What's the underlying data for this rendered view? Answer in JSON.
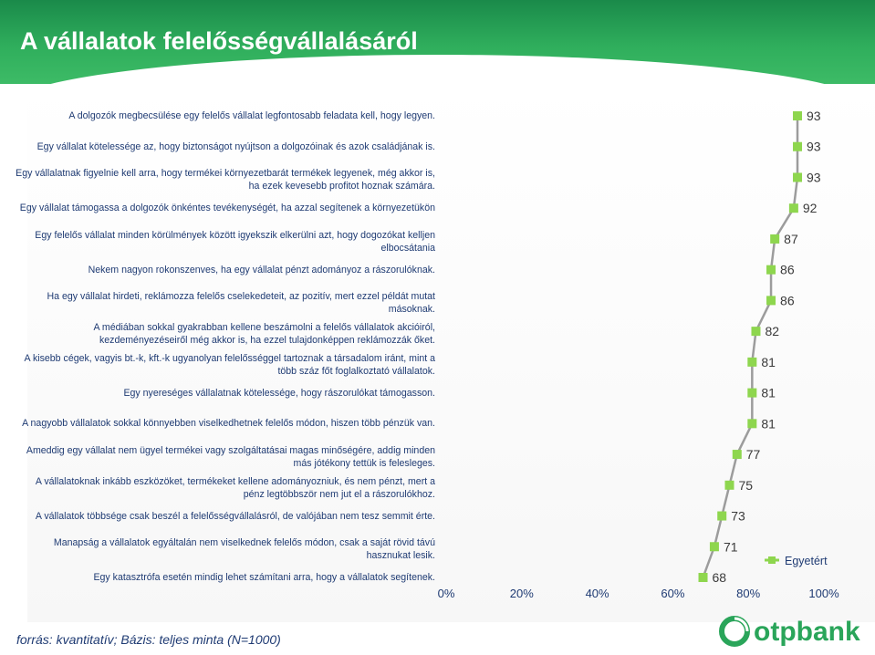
{
  "title": "A vállalatok felelősségvállalásáról",
  "source": "forrás: kvantitatív; Bázis: teljes minta (N=1000)",
  "brand": "otpbank",
  "colors": {
    "series": "#8ed64e",
    "marker": "#8ed64e",
    "line": "#9c9c9c",
    "text": "#1f3b73",
    "header": "#2aa55a"
  },
  "chart_data": {
    "type": "line",
    "xlim": [
      0,
      100
    ],
    "x_ticks": [
      "0%",
      "20%",
      "40%",
      "60%",
      "80%",
      "100%"
    ],
    "legend": {
      "position": "bottom-right",
      "label": "Egyetért"
    },
    "categories": [
      "A dolgozók megbecsülése egy felelős vállalat legfontosabb  feladata kell, hogy legyen.",
      "Egy vállalat kötelessége az, hogy biztonságot nyújtson a dolgozóinak és azok családjának is.",
      "Egy vállalatnak figyelnie kell arra, hogy termékei környezetbarát termékek legyenek, még akkor is, ha ezek kevesebb profitot hoznak számára.",
      "Egy vállalat támogassa a dolgozók önkéntes tevékenységét, ha azzal segítenek a környezetükön",
      "Egy felelős vállalat minden körülmények között igyekszik elkerülni azt, hogy dogozókat kelljen elbocsátania",
      "Nekem nagyon rokonszenves, ha egy vállalat pénzt adományoz a rászorulóknak.",
      "Ha egy vállalat hirdeti, reklámozza felelős cselekedeteit, az pozitív, mert ezzel példát mutat másoknak.",
      "A médiában sokkal gyakrabban kellene beszámolni a felelős vállalatok akcióiról, kezdeményezéseiről még akkor is, ha ezzel tulajdonképpen reklámozzák őket.",
      "A kisebb cégek, vagyis bt.-k, kft.-k ugyanolyan felelősséggel tartoznak a társadalom iránt, mint a több száz főt foglalkoztató vállalatok.",
      "Egy nyereséges vállalatnak kötelessége, hogy rászorulókat támogasson.",
      "A nagyobb vállalatok sokkal könnyebben viselkedhetnek felelős módon, hiszen több pénzük van.",
      "Ameddig egy vállalat nem ügyel termékei vagy szolgáltatásai magas minőségére, addig minden más jótékony tettük is felesleges.",
      "A vállalatoknak inkább eszközöket, termékeket kellene adományozniuk, és nem pénzt, mert a pénz legtöbbször nem jut el a rászorulókhoz.",
      "A vállalatok többsége csak beszél a felelősségvállalásról, de valójában nem tesz semmit érte.",
      "Manapság a vállalatok egyáltalán nem viselkednek felelős módon, csak a saját rövid távú hasznukat lesik.",
      "Egy katasztrófa esetén mindig lehet számítani arra, hogy a vállalatok segítenek."
    ],
    "series": [
      {
        "name": "Egyetért",
        "values": [
          93,
          93,
          93,
          92,
          87,
          86,
          86,
          82,
          81,
          81,
          81,
          77,
          75,
          73,
          71,
          68
        ]
      }
    ]
  }
}
